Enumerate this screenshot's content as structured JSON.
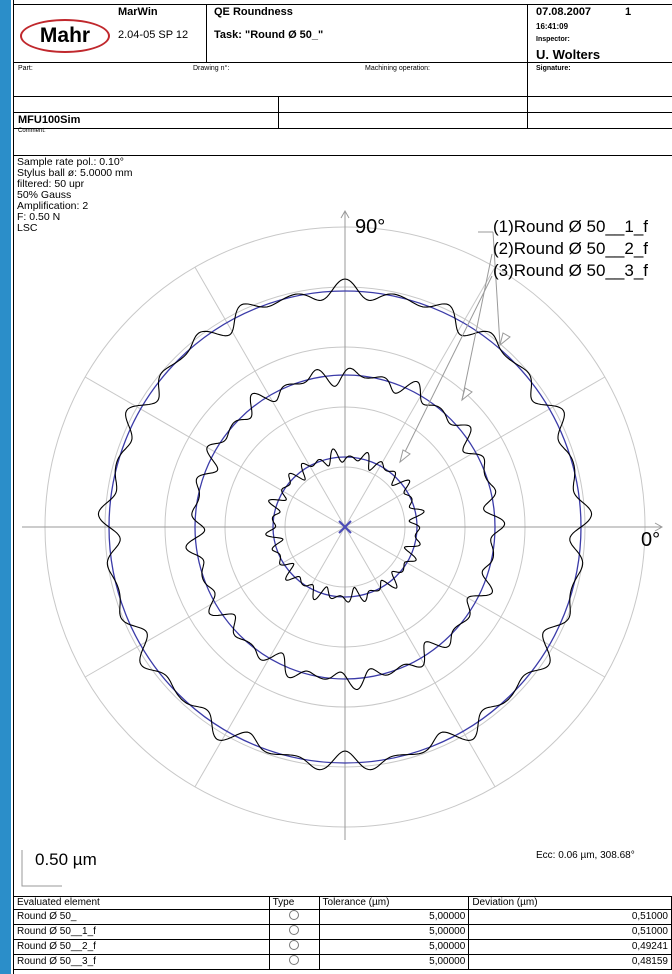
{
  "header": {
    "logo": "Mahr",
    "software": "MarWin",
    "version": "2.04-05 SP 12",
    "module": "QE Roundness",
    "task": "Task: \"Round Ø 50_\"",
    "date": "07.08.2007",
    "page": "1",
    "time": "16:41:09",
    "inspector_label": "Inspector:",
    "inspector": "U. Wolters",
    "signature_label": "Signature:",
    "part_label": "Part:",
    "drawing_label": "Drawing n°:",
    "operation_label": "Machining operation:",
    "machine": "MFU100Sim",
    "comment_label": "Comment:"
  },
  "parameters": [
    "Sample rate pol.: 0.10°",
    "Stylus ball ø: 5.0000 mm",
    "filtered: 50 upr",
    "50% Gauss",
    "Amplification: 2",
    "F: 0.50 N",
    "LSC"
  ],
  "plot": {
    "angle_top": "90°",
    "angle_right": "0°",
    "scale": "0.50 µm",
    "ecc": "Ecc:  0.06 µm, 308.68°",
    "profiles": [
      {
        "label": "(1)Round Ø 50__1_f",
        "ring": 1
      },
      {
        "label": "(2)Round Ø 50__2_f",
        "ring": 2
      },
      {
        "label": "(3)Round Ø 50__3_f",
        "ring": 3
      }
    ],
    "colors": {
      "profile": "#000000",
      "reference_circle": "#3b3ba8",
      "center_mark": "#4a4ab8",
      "grid": "#c8c8c8"
    }
  },
  "table": {
    "headers": [
      "Evaluated element",
      "Type",
      "Tolerance (µm)",
      "Deviation (µm)"
    ],
    "rows": [
      {
        "element": "Round Ø 50_",
        "tolerance": "5,00000",
        "deviation": "0,51000"
      },
      {
        "element": "Round Ø 50__1_f",
        "tolerance": "5,00000",
        "deviation": "0,51000"
      },
      {
        "element": "Round Ø 50__2_f",
        "tolerance": "5,00000",
        "deviation": "0,49241"
      },
      {
        "element": "Round Ø 50__3_f",
        "tolerance": "5,00000",
        "deviation": "0,48159"
      }
    ]
  }
}
